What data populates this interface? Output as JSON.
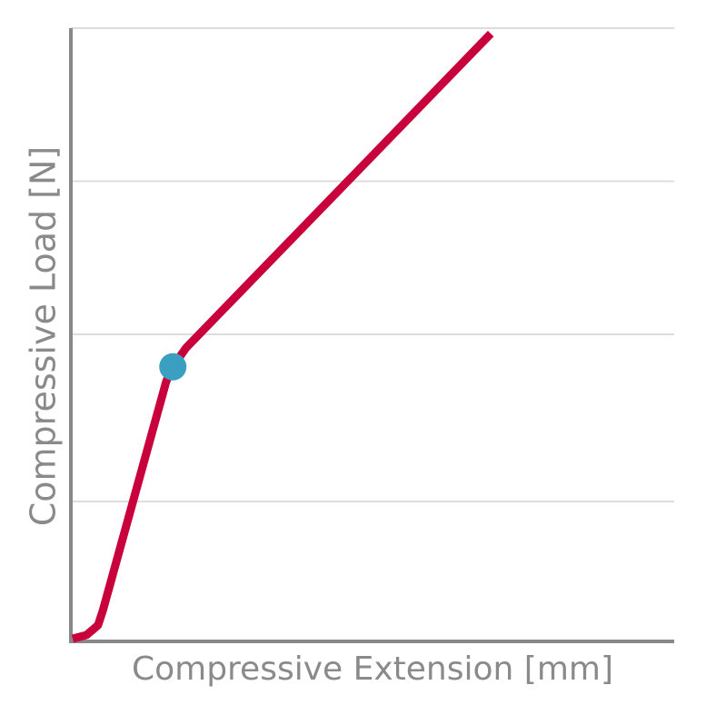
{
  "chart_data": {
    "type": "line",
    "xlabel": "Compressive Extension [mm]",
    "ylabel": "Compressive Load [N]",
    "xlim": [
      0,
      100
    ],
    "ylim": [
      0,
      100
    ],
    "yticks": [
      22.7,
      50,
      75,
      100
    ],
    "tick_labels": false,
    "grid": true,
    "series": [
      {
        "color": "#c8003c",
        "x": [
          0.3,
          2.6,
          4.5,
          5.3,
          15.8,
          16.9,
          19.1,
          69.6
        ],
        "values": [
          0.3,
          0.9,
          2.5,
          4.9,
          42.3,
          44.7,
          47.8,
          99.1
        ]
      },
      {
        "color": "#3a9fc0",
        "marker": true,
        "x": [
          16.9
        ],
        "values": [
          44.7
        ]
      }
    ]
  }
}
